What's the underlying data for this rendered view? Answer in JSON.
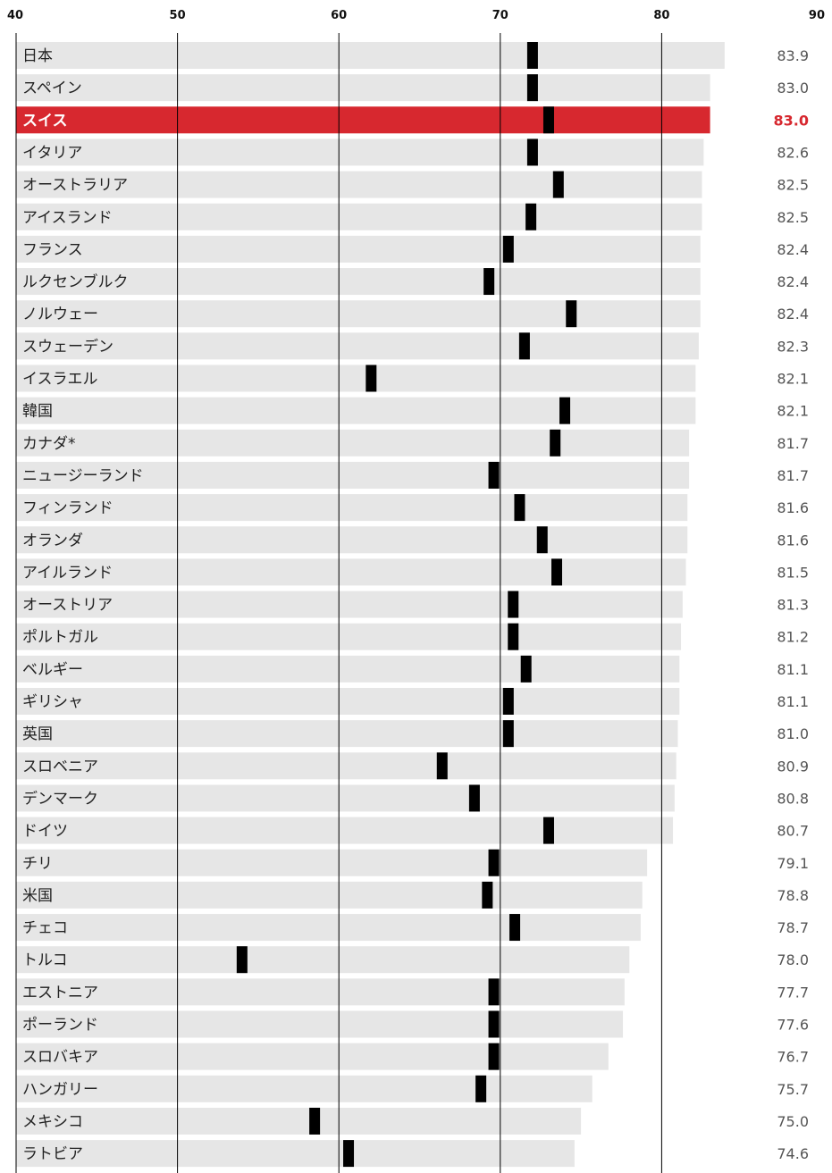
{
  "chart_data": {
    "type": "bar",
    "xlim": [
      40,
      90
    ],
    "x_ticks": [
      "40",
      "50",
      "60",
      "70",
      "80",
      "90"
    ],
    "highlight": "スイス",
    "colors": {
      "bar": "#e6e6e6",
      "highlight_bar": "#d7282f",
      "highlight_text": "#d7282f",
      "marker": "#000000",
      "gridline": "#000000"
    },
    "categories": [
      "日本",
      "スペイン",
      "スイス",
      "イタリア",
      "オーストラリア",
      "アイスランド",
      "フランス",
      "ルクセンブルク",
      "ノルウェー",
      "スウェーデン",
      "イスラエル",
      "韓国",
      "カナダ*",
      "ニュージーランド",
      "フィンランド",
      "オランダ",
      "アイルランド",
      "オーストリア",
      "ポルトガル",
      "ベルギー",
      "ギリシャ",
      "英国",
      "スロベニア",
      "デンマーク",
      "ドイツ",
      "チリ",
      "米国",
      "チェコ",
      "トルコ",
      "エストニア",
      "ポーランド",
      "スロバキア",
      "ハンガリー",
      "メキシコ",
      "ラトビア"
    ],
    "values": [
      83.9,
      83.0,
      83.0,
      82.6,
      82.5,
      82.5,
      82.4,
      82.4,
      82.4,
      82.3,
      82.1,
      82.1,
      81.7,
      81.7,
      81.6,
      81.6,
      81.5,
      81.3,
      81.2,
      81.1,
      81.1,
      81.0,
      80.9,
      80.8,
      80.7,
      79.1,
      78.8,
      78.7,
      78.0,
      77.7,
      77.6,
      76.7,
      75.7,
      75.0,
      74.6
    ],
    "value_labels": [
      "83.9",
      "83.0",
      "83.0",
      "82.6",
      "82.5",
      "82.5",
      "82.4",
      "82.4",
      "82.4",
      "82.3",
      "82.1",
      "82.1",
      "81.7",
      "81.7",
      "81.6",
      "81.6",
      "81.5",
      "81.3",
      "81.2",
      "81.1",
      "81.1",
      "81.0",
      "80.9",
      "80.8",
      "80.7",
      "79.1",
      "78.8",
      "78.7",
      "78.0",
      "77.7",
      "77.6",
      "76.7",
      "75.7",
      "75.0",
      "74.6"
    ],
    "markers": [
      72.0,
      72.0,
      73.0,
      72.0,
      73.6,
      71.9,
      70.5,
      69.3,
      74.4,
      71.5,
      62.0,
      74.0,
      73.4,
      69.6,
      71.2,
      72.6,
      73.5,
      70.8,
      70.8,
      71.6,
      70.5,
      70.5,
      66.4,
      68.4,
      73.0,
      69.6,
      69.2,
      70.9,
      54.0,
      69.6,
      69.6,
      69.6,
      68.8,
      58.5,
      60.6
    ]
  }
}
